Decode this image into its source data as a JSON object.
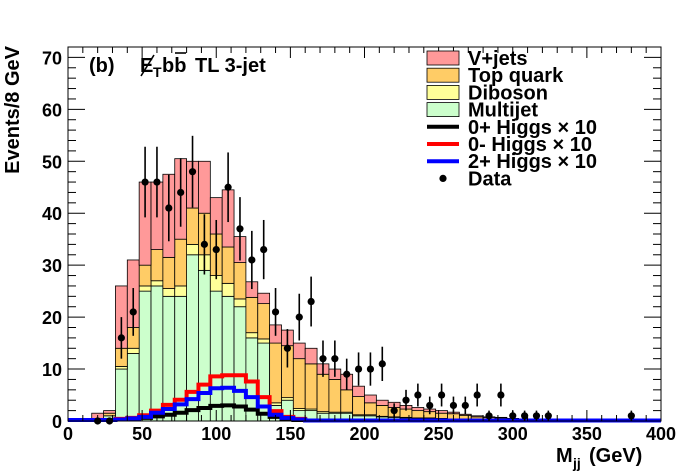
{
  "chart_data": {
    "type": "histogram",
    "panel_label": "(b)",
    "title": "E̸Tbb̄ TL 3-jet",
    "title_parts": {
      "met": "E",
      "met_sub": "T",
      "bb": "bb",
      "rest": "TL 3-jet"
    },
    "xlabel": "M",
    "xlabel_sub": "jj",
    "xlabel_unit": "(GeV)",
    "ylabel": "Events/8 GeV",
    "xlim": [
      0,
      400
    ],
    "ylim": [
      0,
      72
    ],
    "xticks": [
      0,
      50,
      100,
      150,
      200,
      250,
      300,
      350,
      400
    ],
    "yticks": [
      0,
      10,
      20,
      30,
      40,
      50,
      60,
      70
    ],
    "bin_edges": [
      16,
      24,
      32,
      40,
      48,
      56,
      64,
      72,
      80,
      88,
      96,
      104,
      112,
      120,
      128,
      136,
      144,
      152,
      160,
      168,
      176,
      184,
      192,
      200,
      208,
      216,
      224,
      232,
      240,
      248,
      256,
      264,
      272,
      280,
      288,
      296,
      304,
      312,
      320
    ],
    "stack": [
      {
        "name": "Multijet",
        "color": "#ccffcc",
        "values": [
          0.5,
          1,
          10,
          13,
          25,
          26,
          24,
          24,
          32,
          29,
          25,
          24,
          22,
          16,
          15,
          3,
          4,
          2,
          2,
          1.5,
          1.5,
          1.5,
          1,
          1,
          0.8,
          0.7,
          0.6,
          0.5,
          0.5,
          0.4,
          0.3,
          0.3,
          0.2,
          0.2,
          0.2,
          0.1,
          0.1,
          0.1
        ]
      },
      {
        "name": "Diboson",
        "color": "#ffff99",
        "values": [
          0,
          0,
          0.5,
          1,
          1,
          1,
          1.5,
          2,
          2,
          3,
          3,
          2.5,
          1.5,
          1,
          0.8,
          0.5,
          0.5,
          0.4,
          0.3,
          0.3,
          0.2,
          0.2,
          0.2,
          0.2,
          0.1,
          0.1,
          0.1,
          0.1,
          0.1,
          0.1,
          0.1,
          0,
          0,
          0,
          0,
          0,
          0,
          0
        ]
      },
      {
        "name": "Top quark",
        "color": "#ffcc66",
        "values": [
          0,
          0.5,
          3.5,
          4,
          4,
          6,
          6,
          9,
          7,
          8,
          8,
          7,
          7,
          6.8,
          6.8,
          11.5,
          10,
          9.6,
          8.7,
          7.2,
          6.3,
          4.3,
          3.5,
          2.3,
          2.1,
          1.8,
          1.6,
          1.4,
          1.2,
          1.0,
          1.0,
          0.8,
          0.6,
          0.5,
          0.4,
          0.3,
          0.2,
          0.2
        ]
      },
      {
        "name": "V+jets",
        "color": "#ff9999",
        "values": [
          1,
          0.5,
          12,
          13,
          16,
          13,
          16,
          15.5,
          9,
          10,
          7,
          11,
          5,
          3,
          2,
          3.5,
          3,
          3,
          3,
          2,
          2,
          3,
          2,
          1.5,
          1,
          1,
          0.7,
          0.6,
          0.5,
          0.5,
          0.3,
          0.2,
          0.2,
          0.1,
          0.1,
          0.1,
          0.1,
          0.1
        ]
      }
    ],
    "higgs_edges": [
      0,
      32,
      40,
      48,
      56,
      64,
      72,
      80,
      88,
      96,
      104,
      112,
      120,
      128,
      136,
      144,
      152,
      160,
      400
    ],
    "higgs": [
      {
        "name": "0+ Higgs",
        "scale": "× 10",
        "color": "#000000",
        "values": [
          0.2,
          0.3,
          0.4,
          0.6,
          0.9,
          1.2,
          1.6,
          2.1,
          2.5,
          2.9,
          3.0,
          2.8,
          2.2,
          1.4,
          0.8,
          0.4,
          0.2,
          0.1
        ]
      },
      {
        "name": "0- Higgs",
        "scale": "× 10",
        "color": "#ff0000",
        "values": [
          0.2,
          0.4,
          0.6,
          1.1,
          2.0,
          3.1,
          4.1,
          5.6,
          7.0,
          8.6,
          8.8,
          8.8,
          7.6,
          4.6,
          1.9,
          0.8,
          0.4,
          0.1
        ]
      },
      {
        "name": "2+ Higgs",
        "scale": "× 10",
        "color": "#0000ff",
        "values": [
          0.2,
          0.3,
          0.5,
          0.8,
          1.6,
          2.3,
          3.2,
          4.2,
          5.4,
          6.3,
          6.4,
          5.8,
          4.6,
          2.8,
          1.2,
          0.6,
          0.3,
          0.1
        ]
      }
    ],
    "data_label": "Data",
    "data_points": [
      {
        "x": 20,
        "y": 0,
        "err": 0
      },
      {
        "x": 28,
        "y": 0,
        "err": 0
      },
      {
        "x": 36,
        "y": 16,
        "err": 4.0
      },
      {
        "x": 44,
        "y": 21,
        "err": 4.6
      },
      {
        "x": 52,
        "y": 46,
        "err": 6.8
      },
      {
        "x": 60,
        "y": 46,
        "err": 6.8
      },
      {
        "x": 68,
        "y": 41,
        "err": 6.4
      },
      {
        "x": 76,
        "y": 44,
        "err": 6.6
      },
      {
        "x": 84,
        "y": 48,
        "err": 6.9
      },
      {
        "x": 92,
        "y": 34,
        "err": 5.8
      },
      {
        "x": 100,
        "y": 33,
        "err": 5.7
      },
      {
        "x": 108,
        "y": 45,
        "err": 6.7
      },
      {
        "x": 116,
        "y": 37,
        "err": 6.1
      },
      {
        "x": 124,
        "y": 31,
        "err": 5.6
      },
      {
        "x": 132,
        "y": 33,
        "err": 5.7
      },
      {
        "x": 140,
        "y": 21,
        "err": 4.6
      },
      {
        "x": 148,
        "y": 14,
        "err": 3.7
      },
      {
        "x": 156,
        "y": 20,
        "err": 4.5
      },
      {
        "x": 164,
        "y": 23,
        "err": 4.8
      },
      {
        "x": 172,
        "y": 12,
        "err": 3.5
      },
      {
        "x": 180,
        "y": 12,
        "err": 3.5
      },
      {
        "x": 188,
        "y": 9,
        "err": 3.0
      },
      {
        "x": 196,
        "y": 10,
        "err": 3.2
      },
      {
        "x": 204,
        "y": 10,
        "err": 3.2
      },
      {
        "x": 212,
        "y": 11,
        "err": 3.3
      },
      {
        "x": 220,
        "y": 2,
        "err": 1.4
      },
      {
        "x": 228,
        "y": 4,
        "err": 2.0
      },
      {
        "x": 236,
        "y": 5,
        "err": 2.2
      },
      {
        "x": 244,
        "y": 3,
        "err": 1.7
      },
      {
        "x": 252,
        "y": 5,
        "err": 2.2
      },
      {
        "x": 260,
        "y": 3,
        "err": 1.7
      },
      {
        "x": 268,
        "y": 3,
        "err": 1.7
      },
      {
        "x": 276,
        "y": 5,
        "err": 2.2
      },
      {
        "x": 284,
        "y": 1,
        "err": 1.0
      },
      {
        "x": 292,
        "y": 5,
        "err": 2.2
      },
      {
        "x": 300,
        "y": 1,
        "err": 1.0
      },
      {
        "x": 308,
        "y": 1,
        "err": 1.0
      },
      {
        "x": 316,
        "y": 1,
        "err": 1.0
      },
      {
        "x": 324,
        "y": 1,
        "err": 1.0
      },
      {
        "x": 380,
        "y": 1,
        "err": 1.0
      }
    ],
    "legend_position": "top-right",
    "legend": [
      {
        "label": "V+jets",
        "kind": "fill",
        "color": "#ff9999"
      },
      {
        "label": "Top quark",
        "kind": "fill",
        "color": "#ffcc66"
      },
      {
        "label": "Diboson",
        "kind": "fill",
        "color": "#ffff99"
      },
      {
        "label": "Multijet",
        "kind": "fill",
        "color": "#ccffcc"
      },
      {
        "label": "0+ Higgs × 10",
        "kind": "line",
        "color": "#000000"
      },
      {
        "label": "0- Higgs × 10",
        "kind": "line",
        "color": "#ff0000"
      },
      {
        "label": "2+ Higgs × 10",
        "kind": "line",
        "color": "#0000ff"
      },
      {
        "label": "Data",
        "kind": "marker",
        "color": "#000000"
      }
    ]
  }
}
